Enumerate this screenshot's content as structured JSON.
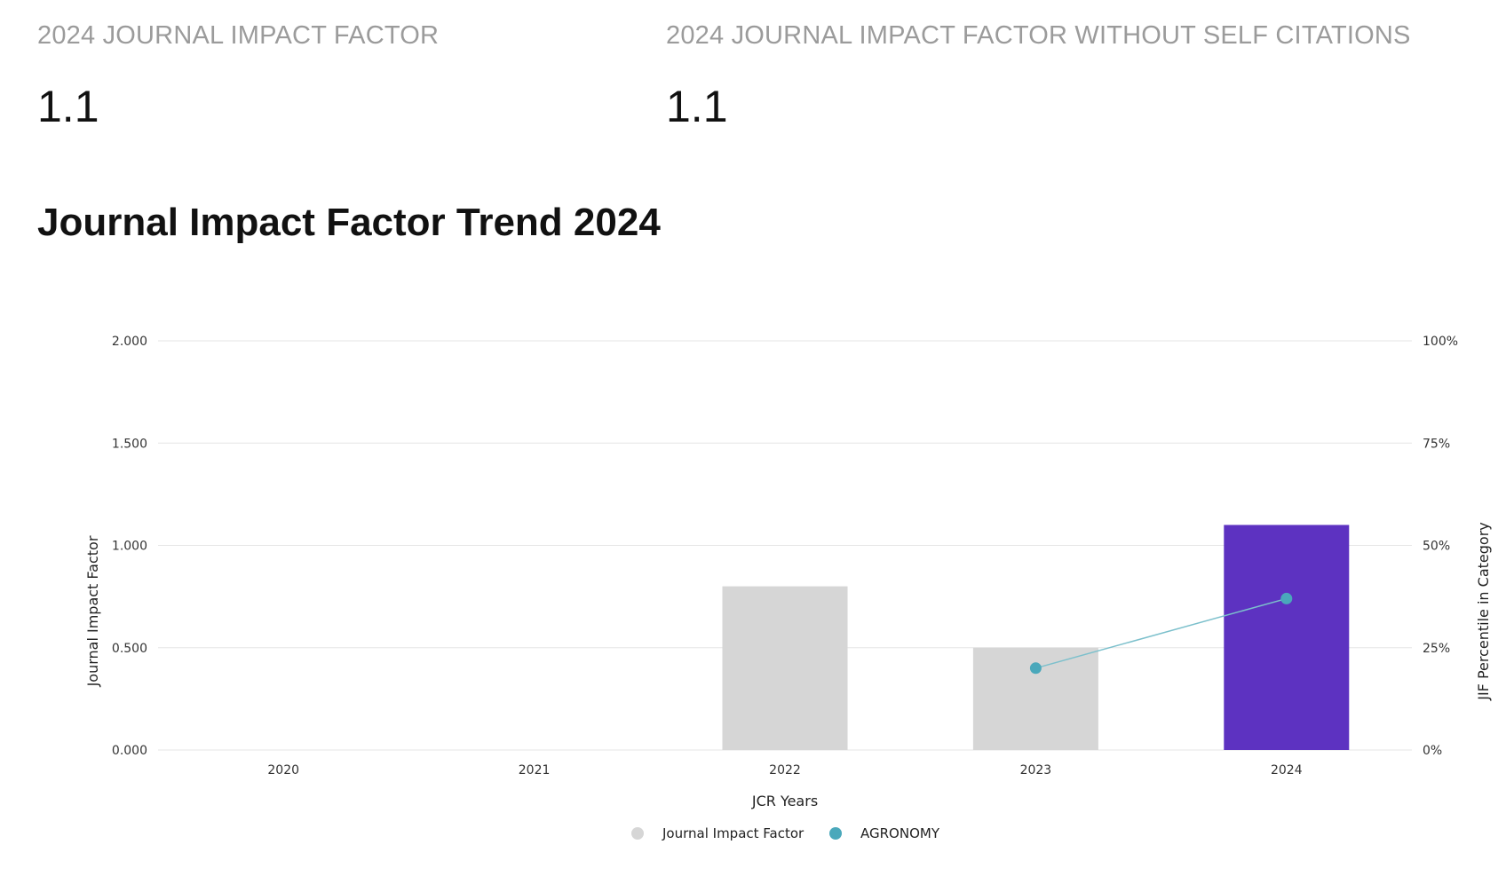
{
  "metrics": {
    "jif": {
      "label": "2024 JOURNAL IMPACT FACTOR",
      "value": "1.1"
    },
    "jif_no_self": {
      "label": "2024 JOURNAL IMPACT FACTOR WITHOUT SELF CITATIONS",
      "value": "1.1"
    }
  },
  "trend": {
    "title": "Journal Impact Factor Trend 2024"
  },
  "colors": {
    "bar_default": "#d6d6d6",
    "bar_highlight": "#5d32c1",
    "line": "#7cc0cc",
    "point": "#4aa8bb",
    "grid": "#e6e6e6",
    "label_muted": "#9b9b9b"
  },
  "chart_data": {
    "type": "bar",
    "title": "",
    "xlabel": "JCR Years",
    "ylabel": "Journal Impact Factor",
    "y2label": "JIF Percentile in Category",
    "categories": [
      "2020",
      "2021",
      "2022",
      "2023",
      "2024"
    ],
    "ylim": [
      0,
      2
    ],
    "y2lim": [
      0,
      100
    ],
    "y_ticks": [
      "0.000",
      "0.500",
      "1.000",
      "1.500",
      "2.000"
    ],
    "y2_ticks": [
      "0%",
      "25%",
      "50%",
      "75%",
      "100%"
    ],
    "grid": true,
    "legend_position": "bottom-center",
    "highlight_category": "2024",
    "series": [
      {
        "name": "Journal Impact Factor",
        "type": "bar",
        "axis": "left",
        "values": [
          null,
          null,
          0.8,
          0.5,
          1.1
        ]
      },
      {
        "name": "AGRONOMY",
        "type": "line",
        "axis": "right",
        "values": [
          null,
          null,
          null,
          20,
          37
        ]
      }
    ]
  }
}
